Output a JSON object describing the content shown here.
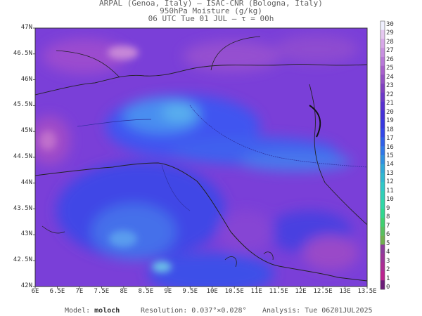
{
  "header": {
    "line1": "ARPAL (Genoa, Italy)  –  ISAC-CNR (Bologna, Italy)",
    "line2": "950hPa Moisture (g/kg)",
    "line3": "06 UTC Tue 01 JUL  –  τ = 00h"
  },
  "axes": {
    "lat_labels": [
      "47N",
      "46.5N",
      "46N",
      "45.5N",
      "45N",
      "44.5N",
      "44N",
      "43.5N",
      "43N",
      "42.5N",
      "42N"
    ],
    "lon_labels": [
      "6E",
      "6.5E",
      "7E",
      "7.5E",
      "8E",
      "8.5E",
      "9E",
      "9.5E",
      "10E",
      "10.5E",
      "11E",
      "11.5E",
      "12E",
      "12.5E",
      "13E",
      "13.5E"
    ]
  },
  "colorbar": {
    "labels": [
      "30",
      "29",
      "28",
      "27",
      "26",
      "25",
      "24",
      "23",
      "22",
      "21",
      "20",
      "19",
      "18",
      "17",
      "16",
      "15",
      "14",
      "13",
      "12",
      "11",
      "10",
      "9",
      "8",
      "7",
      "6",
      "5",
      "4",
      "3",
      "2",
      "1",
      "0"
    ],
    "colors": [
      "#f0f0ff",
      "#e6c8f0",
      "#d8a8e8",
      "#c890e0",
      "#b878d8",
      "#a860cc",
      "#9450c4",
      "#8040c0",
      "#6c38c8",
      "#5830d0",
      "#4430d8",
      "#3838e0",
      "#3448e8",
      "#3060e8",
      "#3078e8",
      "#3090e0",
      "#30a8d8",
      "#30b8d0",
      "#30c8c8",
      "#30d0b8",
      "#30d8a8",
      "#30d890",
      "#40d070",
      "#58c060",
      "#70b050",
      "#8c3c9c",
      "#9c3498",
      "#ac2c94",
      "#bc2490",
      "#6c1c78"
    ]
  },
  "footer": {
    "model_label": "Model:",
    "model_value": "moloch",
    "resolution": "Resolution: 0.037°×0.028°",
    "analysis": "Analysis: Tue 06Z01JUL2025"
  }
}
